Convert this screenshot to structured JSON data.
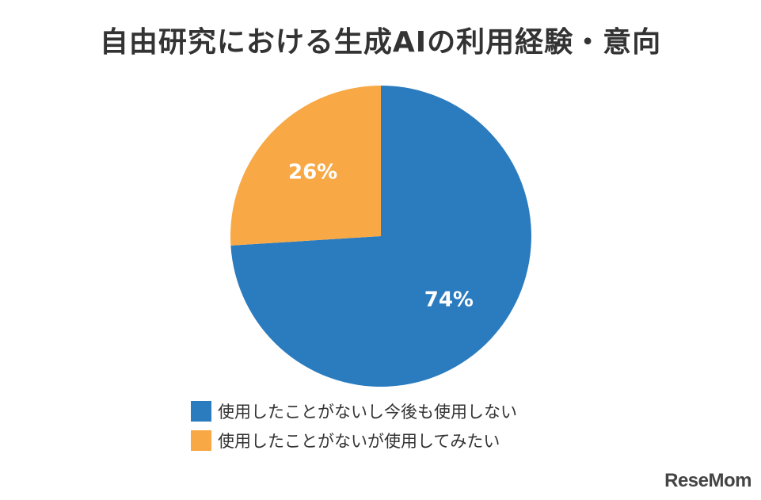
{
  "chart_data": {
    "type": "pie",
    "title": "自由研究における生成AIの利用経験・意向",
    "slices": [
      {
        "label": "使用したことがないし今後も使用しない",
        "value": 74,
        "value_label": "74%",
        "color": "#2B7BBF"
      },
      {
        "label": "使用したことがないが使用してみたい",
        "value": 26,
        "value_label": "26%",
        "color": "#F8A946"
      }
    ],
    "start_angle_deg": 0,
    "direction": "clockwise",
    "legend_position": "bottom-center"
  },
  "brand": {
    "logo_text": "ReseMom"
  }
}
